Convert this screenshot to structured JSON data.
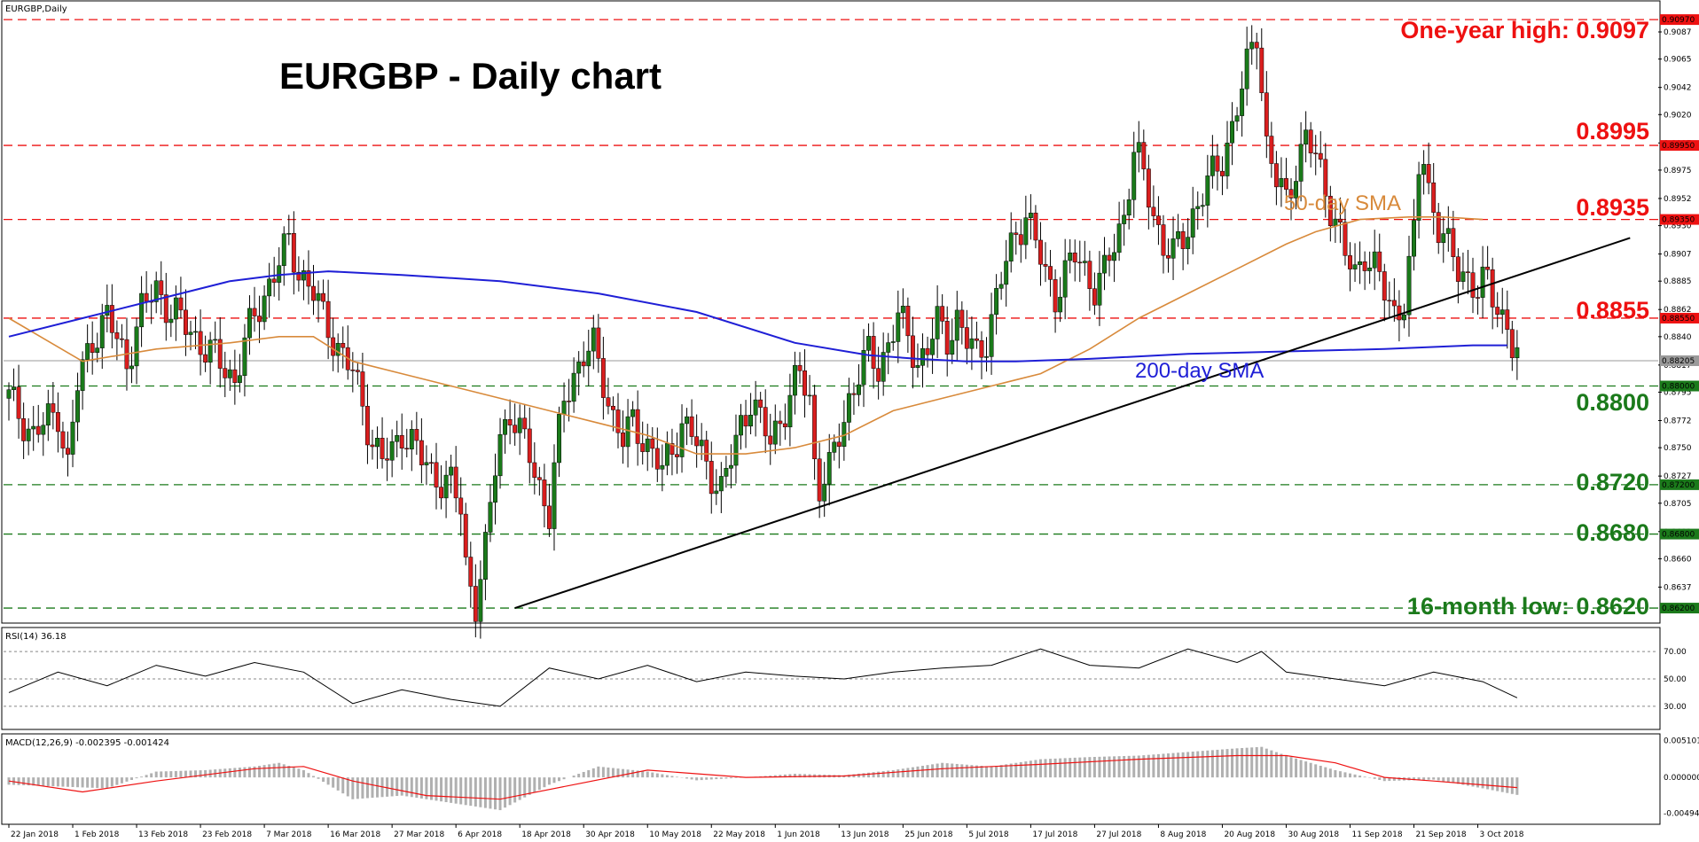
{
  "header": {
    "symbol_label": "EURGBP,Daily"
  },
  "chart_title": "EURGBP - Daily chart",
  "colors": {
    "bull": "#1a7a1a",
    "bear": "#d91e1e",
    "sma50": "#d88a3b",
    "sma200": "#1f1fd6",
    "trendline": "#000000",
    "red_level": "#ee1111",
    "green_level": "#1b7a1b",
    "rsi_line": "#000000",
    "macd_hist": "#b0b0b0",
    "macd_signal": "#ee1111"
  },
  "annotations": {
    "one_year_high": "One-year high: 0.9097",
    "level_8995": "0.8995",
    "level_8935": "0.8935",
    "level_8855": "0.8855",
    "level_8800": "0.8800",
    "level_8720": "0.8720",
    "level_8680": "0.8680",
    "sixteen_month_low": "16-month low: 0.8620",
    "sma50_label": "50-day SMA",
    "sma200_label": "200-day SMA"
  },
  "chart_data": {
    "type": "candlestick",
    "symbol": "EURGBP",
    "timeframe": "Daily",
    "y_range": [
      0.861,
      0.911
    ],
    "price_tick_labels": [
      "0.9087",
      "0.9065",
      "0.9042",
      "0.9020",
      "0.8997",
      "0.8975",
      "0.8952",
      "0.8930",
      "0.8907",
      "0.8885",
      "0.8862",
      "0.8840",
      "0.8817",
      "0.8795",
      "0.8772",
      "0.8750",
      "0.8727",
      "0.8705",
      "0.8682",
      "0.8660",
      "0.8637"
    ],
    "price_tags": [
      {
        "label": "0.90970",
        "value": 0.9097,
        "color": "red"
      },
      {
        "label": "0.89950",
        "value": 0.8995,
        "color": "red"
      },
      {
        "label": "0.89350",
        "value": 0.8935,
        "color": "red"
      },
      {
        "label": "0.88550",
        "value": 0.8855,
        "color": "red"
      },
      {
        "label": "0.88205",
        "value": 0.88205,
        "color": "gray"
      },
      {
        "label": "0.88000",
        "value": 0.88,
        "color": "green"
      },
      {
        "label": "0.87200",
        "value": 0.872,
        "color": "green"
      },
      {
        "label": "0.86800",
        "value": 0.868,
        "color": "green"
      },
      {
        "label": "0.86200",
        "value": 0.862,
        "color": "green"
      }
    ],
    "horizontal_levels": [
      {
        "value": 0.9097,
        "color": "red"
      },
      {
        "value": 0.8995,
        "color": "red"
      },
      {
        "value": 0.8935,
        "color": "red"
      },
      {
        "value": 0.8855,
        "color": "red"
      },
      {
        "value": 0.88,
        "color": "green"
      },
      {
        "value": 0.872,
        "color": "green"
      },
      {
        "value": 0.868,
        "color": "green"
      },
      {
        "value": 0.862,
        "color": "green"
      }
    ],
    "current_price": 0.88205,
    "x_tick_labels": [
      "22 Jan 2018",
      "1 Feb 2018",
      "13 Feb 2018",
      "23 Feb 2018",
      "7 Mar 2018",
      "16 Mar 2018",
      "27 Mar 2018",
      "6 Apr 2018",
      "18 Apr 2018",
      "30 Apr 2018",
      "10 May 2018",
      "22 May 2018",
      "1 Jun 2018",
      "13 Jun 2018",
      "25 Jun 2018",
      "5 Jul 2018",
      "17 Jul 2018",
      "27 Jul 2018",
      "8 Aug 2018",
      "20 Aug 2018",
      "30 Aug 2018",
      "11 Sep 2018",
      "21 Sep 2018",
      "3 Oct 2018"
    ],
    "close_path": [
      [
        0,
        0.879
      ],
      [
        5,
        0.876
      ],
      [
        10,
        0.878
      ],
      [
        12,
        0.8735
      ],
      [
        14,
        0.88
      ],
      [
        17,
        0.884
      ],
      [
        20,
        0.8855
      ],
      [
        24,
        0.882
      ],
      [
        27,
        0.886
      ],
      [
        30,
        0.888
      ],
      [
        33,
        0.886
      ],
      [
        37,
        0.8845
      ],
      [
        40,
        0.883
      ],
      [
        44,
        0.8815
      ],
      [
        46,
        0.8805
      ],
      [
        48,
        0.8835
      ],
      [
        52,
        0.8875
      ],
      [
        55,
        0.89
      ],
      [
        57,
        0.8915
      ],
      [
        59,
        0.8895
      ],
      [
        62,
        0.8875
      ],
      [
        64,
        0.8855
      ],
      [
        66,
        0.884
      ],
      [
        68,
        0.8825
      ],
      [
        70,
        0.881
      ],
      [
        72,
        0.8785
      ],
      [
        74,
        0.8755
      ],
      [
        76,
        0.874
      ],
      [
        78,
        0.8745
      ],
      [
        80,
        0.8765
      ],
      [
        82,
        0.8755
      ],
      [
        84,
        0.874
      ],
      [
        86,
        0.873
      ],
      [
        88,
        0.8725
      ],
      [
        90,
        0.872
      ],
      [
        92,
        0.87
      ],
      [
        93,
        0.8655
      ],
      [
        94,
        0.864
      ],
      [
        95,
        0.8625
      ],
      [
        96,
        0.8645
      ],
      [
        97,
        0.8665
      ],
      [
        98,
        0.87
      ],
      [
        99,
        0.8735
      ],
      [
        100,
        0.876
      ],
      [
        102,
        0.878
      ],
      [
        104,
        0.876
      ],
      [
        106,
        0.8745
      ],
      [
        108,
        0.872
      ],
      [
        110,
        0.8695
      ],
      [
        111,
        0.873
      ],
      [
        113,
        0.879
      ],
      [
        115,
        0.881
      ],
      [
        117,
        0.8825
      ],
      [
        119,
        0.883
      ],
      [
        121,
        0.8805
      ],
      [
        123,
        0.8775
      ],
      [
        125,
        0.8755
      ],
      [
        127,
        0.877
      ],
      [
        129,
        0.876
      ],
      [
        131,
        0.8745
      ],
      [
        133,
        0.873
      ],
      [
        135,
        0.875
      ],
      [
        137,
        0.877
      ],
      [
        139,
        0.876
      ],
      [
        141,
        0.8745
      ],
      [
        143,
        0.873
      ],
      [
        145,
        0.8715
      ],
      [
        147,
        0.874
      ],
      [
        149,
        0.877
      ],
      [
        151,
        0.879
      ],
      [
        153,
        0.877
      ],
      [
        155,
        0.8755
      ],
      [
        157,
        0.8775
      ],
      [
        159,
        0.879
      ],
      [
        161,
        0.881
      ],
      [
        163,
        0.879
      ],
      [
        164,
        0.874
      ],
      [
        165,
        0.872
      ],
      [
        167,
        0.873
      ],
      [
        169,
        0.876
      ],
      [
        171,
        0.879
      ],
      [
        173,
        0.881
      ],
      [
        175,
        0.8825
      ],
      [
        177,
        0.8815
      ],
      [
        179,
        0.8835
      ],
      [
        181,
        0.8855
      ],
      [
        183,
        0.884
      ],
      [
        185,
        0.882
      ],
      [
        187,
        0.883
      ],
      [
        189,
        0.885
      ],
      [
        191,
        0.884
      ],
      [
        193,
        0.8855
      ],
      [
        195,
        0.8835
      ],
      [
        197,
        0.8825
      ],
      [
        199,
        0.884
      ],
      [
        201,
        0.887
      ],
      [
        203,
        0.89
      ],
      [
        205,
        0.8925
      ],
      [
        207,
        0.894
      ],
      [
        209,
        0.8915
      ],
      [
        211,
        0.889
      ],
      [
        213,
        0.8875
      ],
      [
        215,
        0.889
      ],
      [
        217,
        0.8905
      ],
      [
        219,
        0.8895
      ],
      [
        221,
        0.888
      ],
      [
        223,
        0.889
      ],
      [
        225,
        0.8915
      ],
      [
        227,
        0.894
      ],
      [
        229,
        0.899
      ],
      [
        231,
        0.897
      ],
      [
        233,
        0.894
      ],
      [
        235,
        0.8915
      ],
      [
        237,
        0.8905
      ],
      [
        239,
        0.892
      ],
      [
        241,
        0.894
      ],
      [
        243,
        0.8955
      ],
      [
        245,
        0.897
      ],
      [
        247,
        0.8985
      ],
      [
        249,
        0.901
      ],
      [
        251,
        0.904
      ],
      [
        253,
        0.9075
      ],
      [
        254,
        0.909
      ],
      [
        255,
        0.9045
      ],
      [
        256,
        0.8995
      ],
      [
        258,
        0.8965
      ],
      [
        260,
        0.895
      ],
      [
        262,
        0.898
      ],
      [
        264,
        0.9
      ],
      [
        266,
        0.8985
      ],
      [
        268,
        0.896
      ],
      [
        270,
        0.8935
      ],
      [
        272,
        0.8905
      ],
      [
        274,
        0.889
      ],
      [
        276,
        0.891
      ],
      [
        278,
        0.8895
      ],
      [
        280,
        0.8875
      ],
      [
        282,
        0.886
      ],
      [
        284,
        0.887
      ],
      [
        286,
        0.892
      ],
      [
        287,
        0.8975
      ],
      [
        288,
        0.8985
      ],
      [
        289,
        0.896
      ],
      [
        291,
        0.893
      ],
      [
        293,
        0.891
      ],
      [
        295,
        0.8895
      ],
      [
        297,
        0.889
      ],
      [
        299,
        0.8875
      ],
      [
        301,
        0.8885
      ],
      [
        303,
        0.8865
      ],
      [
        305,
        0.885
      ],
      [
        306,
        0.883
      ],
      [
        307,
        0.882
      ]
    ],
    "sma50": [
      [
        0,
        0.8855
      ],
      [
        15,
        0.882
      ],
      [
        30,
        0.883
      ],
      [
        45,
        0.8835
      ],
      [
        55,
        0.884
      ],
      [
        62,
        0.884
      ],
      [
        70,
        0.882
      ],
      [
        80,
        0.881
      ],
      [
        90,
        0.88
      ],
      [
        100,
        0.879
      ],
      [
        110,
        0.878
      ],
      [
        120,
        0.877
      ],
      [
        130,
        0.876
      ],
      [
        140,
        0.8745
      ],
      [
        150,
        0.8745
      ],
      [
        160,
        0.875
      ],
      [
        170,
        0.876
      ],
      [
        180,
        0.878
      ],
      [
        190,
        0.879
      ],
      [
        200,
        0.88
      ],
      [
        210,
        0.881
      ],
      [
        220,
        0.883
      ],
      [
        230,
        0.8855
      ],
      [
        240,
        0.8875
      ],
      [
        250,
        0.8895
      ],
      [
        260,
        0.8915
      ],
      [
        266,
        0.8925
      ],
      [
        275,
        0.8935
      ],
      [
        285,
        0.8937
      ],
      [
        292,
        0.8937
      ],
      [
        300,
        0.8935
      ]
    ],
    "sma200": [
      [
        0,
        0.884
      ],
      [
        15,
        0.8855
      ],
      [
        30,
        0.887
      ],
      [
        45,
        0.8885
      ],
      [
        55,
        0.889
      ],
      [
        65,
        0.8893
      ],
      [
        80,
        0.889
      ],
      [
        100,
        0.8885
      ],
      [
        120,
        0.8875
      ],
      [
        140,
        0.886
      ],
      [
        160,
        0.8835
      ],
      [
        175,
        0.8825
      ],
      [
        185,
        0.8822
      ],
      [
        195,
        0.882
      ],
      [
        205,
        0.882
      ],
      [
        220,
        0.8822
      ],
      [
        240,
        0.8826
      ],
      [
        260,
        0.8828
      ],
      [
        280,
        0.883
      ],
      [
        298,
        0.8833
      ],
      [
        305,
        0.8833
      ]
    ],
    "trendline": {
      "from": [
        103,
        0.862
      ],
      "to": [
        330,
        0.892
      ]
    },
    "rsi": {
      "label": "RSI(14) 36.18",
      "value": 36.18,
      "y_range": [
        15,
        85
      ],
      "levels": [
        70,
        50,
        30
      ],
      "tick_labels": [
        "70.00",
        "50.00",
        "30.00"
      ],
      "line": [
        [
          0,
          40
        ],
        [
          10,
          55
        ],
        [
          20,
          45
        ],
        [
          30,
          60
        ],
        [
          40,
          52
        ],
        [
          50,
          62
        ],
        [
          60,
          55
        ],
        [
          70,
          32
        ],
        [
          80,
          42
        ],
        [
          90,
          35
        ],
        [
          100,
          30
        ],
        [
          110,
          58
        ],
        [
          120,
          50
        ],
        [
          130,
          60
        ],
        [
          140,
          48
        ],
        [
          150,
          55
        ],
        [
          160,
          52
        ],
        [
          170,
          50
        ],
        [
          180,
          55
        ],
        [
          190,
          58
        ],
        [
          200,
          60
        ],
        [
          210,
          72
        ],
        [
          220,
          60
        ],
        [
          230,
          58
        ],
        [
          240,
          72
        ],
        [
          250,
          62
        ],
        [
          255,
          70
        ],
        [
          260,
          55
        ],
        [
          270,
          50
        ],
        [
          280,
          45
        ],
        [
          290,
          55
        ],
        [
          300,
          48
        ],
        [
          307,
          36.18
        ]
      ]
    },
    "macd": {
      "label": "MACD(12,26,9) -0.002395 -0.001424",
      "params": [
        12,
        26,
        9
      ],
      "main": -0.002395,
      "signal": -0.001424,
      "y_range": [
        -0.0062,
        0.0055
      ],
      "tick_labels": [
        "0.005101",
        "0.000000",
        "-0.004945"
      ],
      "hist": [
        [
          0,
          -0.001
        ],
        [
          20,
          -0.0015
        ],
        [
          30,
          0.0008
        ],
        [
          40,
          0.001
        ],
        [
          50,
          0.0015
        ],
        [
          55,
          0.002
        ],
        [
          60,
          0.001
        ],
        [
          70,
          -0.003
        ],
        [
          80,
          -0.0025
        ],
        [
          90,
          -0.0035
        ],
        [
          100,
          -0.0045
        ],
        [
          110,
          -0.001
        ],
        [
          120,
          0.0015
        ],
        [
          130,
          0.0008
        ],
        [
          140,
          -0.0004
        ],
        [
          150,
          0.0
        ],
        [
          160,
          0.0005
        ],
        [
          170,
          0.0003
        ],
        [
          180,
          0.001
        ],
        [
          190,
          0.002
        ],
        [
          200,
          0.0015
        ],
        [
          210,
          0.0025
        ],
        [
          220,
          0.0028
        ],
        [
          230,
          0.003
        ],
        [
          240,
          0.0035
        ],
        [
          250,
          0.004
        ],
        [
          255,
          0.0042
        ],
        [
          260,
          0.003
        ],
        [
          270,
          0.001
        ],
        [
          280,
          -0.0005
        ],
        [
          290,
          -0.0003
        ],
        [
          300,
          -0.0015
        ],
        [
          307,
          -0.0024
        ]
      ],
      "signal_line": [
        [
          0,
          -0.0005
        ],
        [
          15,
          -0.002
        ],
        [
          30,
          -0.0005
        ],
        [
          50,
          0.0012
        ],
        [
          60,
          0.0015
        ],
        [
          70,
          -0.0005
        ],
        [
          85,
          -0.0025
        ],
        [
          100,
          -0.003
        ],
        [
          115,
          -0.001
        ],
        [
          130,
          0.001
        ],
        [
          150,
          0.0
        ],
        [
          170,
          0.0002
        ],
        [
          190,
          0.0012
        ],
        [
          210,
          0.0018
        ],
        [
          230,
          0.0025
        ],
        [
          250,
          0.003
        ],
        [
          260,
          0.003
        ],
        [
          270,
          0.002
        ],
        [
          280,
          0.0
        ],
        [
          290,
          -0.0005
        ],
        [
          307,
          -0.0014
        ]
      ]
    }
  }
}
